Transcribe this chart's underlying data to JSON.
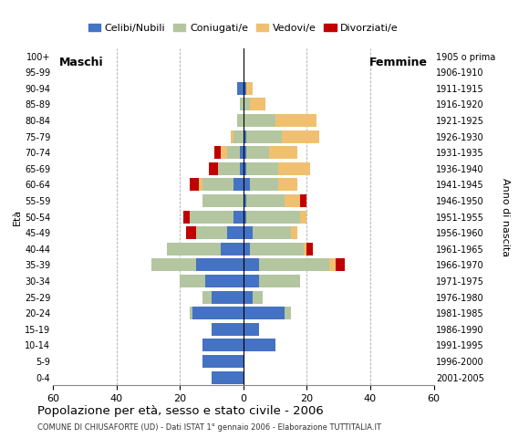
{
  "age_groups": [
    "0-4",
    "5-9",
    "10-14",
    "15-19",
    "20-24",
    "25-29",
    "30-34",
    "35-39",
    "40-44",
    "45-49",
    "50-54",
    "55-59",
    "60-64",
    "65-69",
    "70-74",
    "75-79",
    "80-84",
    "85-89",
    "90-94",
    "95-99",
    "100+"
  ],
  "birth_years": [
    "2001-2005",
    "1996-2000",
    "1991-1995",
    "1986-1990",
    "1981-1985",
    "1976-1980",
    "1971-1975",
    "1966-1970",
    "1961-1965",
    "1956-1960",
    "1951-1955",
    "1946-1950",
    "1941-1945",
    "1936-1940",
    "1931-1935",
    "1926-1930",
    "1921-1925",
    "1916-1920",
    "1911-1915",
    "1906-1910",
    "1905 o prima"
  ],
  "male": {
    "celibinubili": [
      10,
      13,
      13,
      10,
      16,
      10,
      12,
      15,
      7,
      5,
      3,
      0,
      3,
      1,
      1,
      0,
      0,
      0,
      2,
      0,
      0
    ],
    "coniugati": [
      0,
      0,
      0,
      0,
      1,
      3,
      8,
      14,
      17,
      10,
      14,
      13,
      10,
      7,
      4,
      3,
      2,
      1,
      0,
      0,
      0
    ],
    "vedovi": [
      0,
      0,
      0,
      0,
      0,
      0,
      0,
      0,
      0,
      0,
      0,
      0,
      1,
      0,
      2,
      1,
      0,
      0,
      0,
      0,
      0
    ],
    "divorziati": [
      0,
      0,
      0,
      0,
      0,
      0,
      0,
      0,
      0,
      3,
      2,
      0,
      3,
      3,
      2,
      0,
      0,
      0,
      0,
      0,
      0
    ]
  },
  "female": {
    "celibinubili": [
      0,
      0,
      10,
      5,
      13,
      3,
      5,
      5,
      2,
      3,
      1,
      1,
      2,
      1,
      1,
      1,
      0,
      0,
      1,
      0,
      0
    ],
    "coniugati": [
      0,
      0,
      0,
      0,
      2,
      3,
      13,
      22,
      17,
      12,
      17,
      12,
      9,
      10,
      7,
      11,
      10,
      2,
      0,
      0,
      0
    ],
    "vedovi": [
      0,
      0,
      0,
      0,
      0,
      0,
      0,
      2,
      1,
      2,
      2,
      5,
      6,
      10,
      9,
      12,
      13,
      5,
      2,
      0,
      0
    ],
    "divorziati": [
      0,
      0,
      0,
      0,
      0,
      0,
      0,
      3,
      2,
      0,
      0,
      2,
      0,
      0,
      0,
      0,
      0,
      0,
      0,
      0,
      0
    ]
  },
  "colors": {
    "celibinubili": "#4472c4",
    "coniugati": "#b3c6a0",
    "vedovi": "#f0c070",
    "divorziati": "#c00000"
  },
  "legend_labels": [
    "Celibi/Nubili",
    "Coniugati/e",
    "Vedovi/e",
    "Divorziati/e"
  ],
  "xlim": 60,
  "title": "Popolazione per età, sesso e stato civile - 2006",
  "subtitle": "COMUNE DI CHIUSAFORTE (UD) - Dati ISTAT 1° gennaio 2006 - Elaborazione TUTTITALIA.IT",
  "xlabel_left": "Maschi",
  "xlabel_right": "Femmine",
  "ylabel_left": "Età",
  "ylabel_right": "Anno di nascita",
  "background_color": "#ffffff",
  "grid_color": "#aaaaaa"
}
